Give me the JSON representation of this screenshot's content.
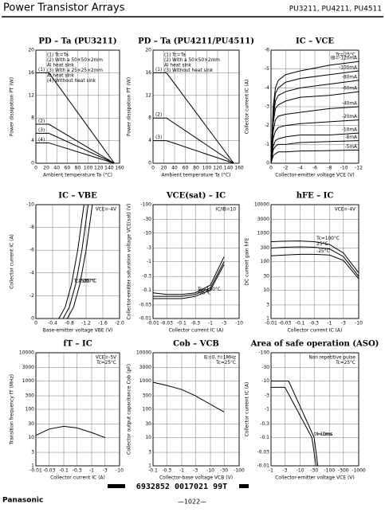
{
  "header": {
    "title": "Power Transistor Arrays",
    "models": "PU3211, PU4211, PU4511"
  },
  "chart_data": [
    {
      "type": "line",
      "title": "PD – Ta (PU3211)",
      "xlabel": "Ambient temperature Ta (°C)",
      "ylabel": "Power dissipation PT (W)",
      "xlim": [
        0,
        160
      ],
      "xticks": [
        0,
        20,
        40,
        60,
        80,
        100,
        120,
        140,
        160
      ],
      "ylim": [
        0,
        20
      ],
      "yticks": [
        0,
        4,
        8,
        12,
        16,
        20
      ],
      "grid": true,
      "legend": "upper left",
      "series_label": "start",
      "color": "#000",
      "annotations": [
        "(1) Tc=Ta",
        "(2) With a 50×50×2mm",
        "Al heat sink",
        "(3) With a 25×25×2mm",
        "Al heat sink",
        "(4) Without heat sink"
      ],
      "series": [
        {
          "name": "(1)",
          "x": [
            0,
            25,
            150
          ],
          "values": [
            16,
            16,
            0
          ]
        },
        {
          "name": "(2)",
          "x": [
            0,
            25,
            150
          ],
          "values": [
            6.9,
            6.9,
            0
          ]
        },
        {
          "name": "(3)",
          "x": [
            0,
            25,
            150
          ],
          "values": [
            5.3,
            5.3,
            0
          ]
        },
        {
          "name": "(4)",
          "x": [
            0,
            25,
            150
          ],
          "values": [
            3.6,
            3.6,
            0
          ]
        }
      ]
    },
    {
      "type": "line",
      "title": "PD – Ta (PU4211/PU4511)",
      "xlabel": "Ambient temperature Ta (°C)",
      "ylabel": "Power dissipation PT (W)",
      "xlim": [
        0,
        160
      ],
      "xticks": [
        0,
        20,
        40,
        60,
        80,
        100,
        120,
        140,
        160
      ],
      "ylim": [
        0,
        20
      ],
      "yticks": [
        0,
        4,
        8,
        12,
        16,
        20
      ],
      "grid": true,
      "legend": "upper left",
      "series_label": "start",
      "color": "#000",
      "annotations": [
        "(1) Tc=Ta",
        "(2) With a 50×50×2mm",
        "Al heat sink",
        "(3) Without heat sink"
      ],
      "series": [
        {
          "name": "(1)",
          "x": [
            0,
            25,
            150
          ],
          "values": [
            16,
            16,
            0
          ]
        },
        {
          "name": "(2)",
          "x": [
            0,
            25,
            150
          ],
          "values": [
            8,
            8,
            0
          ]
        },
        {
          "name": "(3)",
          "x": [
            0,
            25,
            150
          ],
          "values": [
            4,
            4,
            0
          ]
        }
      ]
    },
    {
      "type": "line",
      "title": "IC – VCE",
      "xlabel": "Collector-emitter voltage VCE (V)",
      "ylabel": "Collector current IC (A)",
      "xlim": [
        0,
        -12
      ],
      "xticks": [
        0,
        -2,
        -4,
        -6,
        -8,
        -10,
        -12
      ],
      "ylim": [
        0,
        -6
      ],
      "yticks": [
        0,
        -1,
        -2,
        -3,
        -4,
        -5,
        -6
      ],
      "grid": true,
      "legend": "upper right",
      "series_label": "end",
      "color": "#000",
      "annotations": [
        "Tc=25°C"
      ],
      "x": [
        0,
        -0.3,
        -0.6,
        -1,
        -2,
        -4,
        -8,
        -12
      ],
      "series": [
        {
          "name": "IB=-120mA",
          "values": [
            0,
            -3.0,
            -4.0,
            -4.4,
            -4.7,
            -4.9,
            -5.2,
            -5.4
          ]
        },
        {
          "name": "-100mA",
          "values": [
            0,
            -2.7,
            -3.7,
            -4.0,
            -4.3,
            -4.5,
            -4.7,
            -4.9
          ]
        },
        {
          "name": "-80mA",
          "values": [
            0,
            -2.4,
            -3.3,
            -3.6,
            -3.8,
            -4.0,
            -4.2,
            -4.4
          ]
        },
        {
          "name": "-60mA",
          "values": [
            0,
            -2.1,
            -2.9,
            -3.1,
            -3.3,
            -3.5,
            -3.6,
            -3.8
          ]
        },
        {
          "name": "-40mA",
          "values": [
            0,
            -1.7,
            -2.3,
            -2.5,
            -2.6,
            -2.7,
            -2.9,
            -3.0
          ]
        },
        {
          "name": "-20mA",
          "values": [
            0,
            -1.3,
            -1.7,
            -1.9,
            -2.0,
            -2.1,
            -2.2,
            -2.3
          ]
        },
        {
          "name": "-10mA",
          "values": [
            0,
            -0.9,
            -1.2,
            -1.3,
            -1.4,
            -1.5,
            -1.5,
            -1.6
          ]
        },
        {
          "name": "-8mA",
          "values": [
            0,
            -0.7,
            -0.9,
            -1.0,
            -1.0,
            -1.1,
            -1.15,
            -1.2
          ]
        },
        {
          "name": "-5mA",
          "values": [
            0,
            -0.4,
            -0.5,
            -0.6,
            -0.6,
            -0.65,
            -0.67,
            -0.7
          ]
        }
      ]
    },
    {
      "type": "line",
      "title": "IC – VBE",
      "xlabel": "Base-emitter voltage VBE (V)",
      "ylabel": "Collector current IC (A)",
      "xlim": [
        0,
        -2
      ],
      "xticks": [
        0,
        -0.4,
        -0.8,
        -1.2,
        -1.6,
        {
          "value": -2,
          "label": "-2.0"
        }
      ],
      "ylim": [
        0,
        -10
      ],
      "yticks": [
        0,
        -2,
        -4,
        -6,
        -8,
        -10
      ],
      "grid": true,
      "legend": "upper right",
      "series_label": "mid",
      "color": "#000",
      "annotations": [
        "VCE=-4V"
      ],
      "series": [
        {
          "name": "Tc=100°C",
          "x": [
            -0.55,
            -0.7,
            -0.85,
            -1.0,
            -1.15
          ],
          "values": [
            0,
            -1,
            -3,
            -6,
            -10
          ]
        },
        {
          "name": "25°C",
          "x": [
            -0.65,
            -0.8,
            -0.95,
            -1.1,
            -1.25
          ],
          "values": [
            0,
            -1,
            -3,
            -6,
            -10
          ]
        },
        {
          "name": "-25°C",
          "x": [
            -0.75,
            -0.9,
            -1.05,
            -1.2,
            -1.35
          ],
          "values": [
            0,
            -1,
            -3,
            -6,
            -10
          ]
        }
      ]
    },
    {
      "type": "line",
      "title": "VCE(sat) – IC",
      "xlabel": "Collector current IC (A)",
      "ylabel": "Collector-emitter saturation voltage VCE(sat) (V)",
      "xlog": true,
      "ylog": true,
      "xlim": [
        -0.01,
        -10
      ],
      "xticks": [
        -0.01,
        -0.03,
        -0.1,
        -0.3,
        -1,
        -3,
        -10
      ],
      "ylim": [
        -0.01,
        -100
      ],
      "yticks": [
        -0.01,
        -0.03,
        -0.1,
        -0.3,
        -1,
        -3,
        -10,
        -30,
        -100
      ],
      "grid": true,
      "legend": "upper right",
      "series_label": "mid",
      "color": "#000",
      "annotations": [
        "IC/IB=10"
      ],
      "series": [
        {
          "name": "Tc=100°C",
          "x": [
            -0.01,
            -0.03,
            -0.1,
            -0.3,
            -1,
            -3
          ],
          "values": [
            -0.08,
            -0.07,
            -0.07,
            -0.08,
            -0.15,
            -1.5
          ]
        },
        {
          "name": "25°C",
          "x": [
            -0.01,
            -0.03,
            -0.1,
            -0.3,
            -1,
            -3
          ],
          "values": [
            -0.06,
            -0.06,
            -0.06,
            -0.07,
            -0.12,
            -1.0
          ]
        },
        {
          "name": "-25°C",
          "x": [
            -0.01,
            -0.03,
            -0.1,
            -0.3,
            -1,
            -3
          ],
          "values": [
            -0.05,
            -0.05,
            -0.05,
            -0.06,
            -0.1,
            -0.8
          ]
        }
      ]
    },
    {
      "type": "line",
      "title": "hFE – IC",
      "xlabel": "Collector current IC (A)",
      "ylabel": "DC current gain hFE",
      "xlog": true,
      "ylog": true,
      "xlim": [
        -0.01,
        -10
      ],
      "xticks": [
        -0.01,
        -0.03,
        -0.1,
        -0.3,
        -1,
        -3,
        -10
      ],
      "ylim": [
        1,
        10000
      ],
      "yticks": [
        1,
        3,
        10,
        30,
        100,
        300,
        1000,
        3000,
        10000
      ],
      "grid": true,
      "legend": "upper right",
      "series_label": "mid",
      "color": "#000",
      "annotations": [
        "VCE=-4V"
      ],
      "series": [
        {
          "name": "Tc=100°C",
          "x": [
            -0.01,
            -0.03,
            -0.1,
            -0.3,
            -1,
            -3,
            -10
          ],
          "values": [
            500,
            520,
            530,
            500,
            400,
            200,
            40
          ]
        },
        {
          "name": "25°C",
          "x": [
            -0.01,
            -0.03,
            -0.1,
            -0.3,
            -1,
            -3,
            -10
          ],
          "values": [
            300,
            320,
            330,
            320,
            280,
            150,
            30
          ]
        },
        {
          "name": "-25°C",
          "x": [
            -0.01,
            -0.03,
            -0.1,
            -0.3,
            -1,
            -3,
            -10
          ],
          "values": [
            160,
            170,
            180,
            180,
            170,
            110,
            25
          ]
        }
      ]
    },
    {
      "type": "line",
      "title": "fT – IC",
      "xlabel": "Collector current IC (A)",
      "ylabel": "Transition frequency fT (MHz)",
      "xlog": true,
      "ylog": true,
      "xlim": [
        -0.01,
        -10
      ],
      "xticks": [
        -0.01,
        -0.03,
        -0.1,
        -0.3,
        -1,
        -3,
        -10
      ],
      "ylim": [
        1,
        10000
      ],
      "yticks": [
        1,
        3,
        10,
        30,
        100,
        300,
        1000,
        3000,
        10000
      ],
      "grid": true,
      "legend": "upper right",
      "series_label": "end",
      "color": "#000",
      "annotations": [
        "VCE=-5V",
        "Tc=25°C"
      ],
      "series": [
        {
          "x": [
            -0.01,
            -0.03,
            -0.1,
            -0.3,
            -1,
            -3
          ],
          "values": [
            12,
            20,
            25,
            22,
            15,
            10
          ]
        }
      ]
    },
    {
      "type": "line",
      "title": "Cob – VCB",
      "xlabel": "Collector-base voltage VCB (V)",
      "ylabel": "Collector output capacitance Cob (pF)",
      "xlog": true,
      "ylog": true,
      "xlim": [
        -0.1,
        -100
      ],
      "xticks": [
        -0.1,
        -0.3,
        -1,
        -3,
        -10,
        -30,
        -100
      ],
      "ylim": [
        1,
        10000
      ],
      "yticks": [
        1,
        3,
        10,
        30,
        100,
        300,
        1000,
        3000,
        10000
      ],
      "grid": true,
      "legend": "upper right",
      "series_label": "end",
      "color": "#000",
      "annotations": [
        "IE=0, f=1MHz",
        "Tc=25°C"
      ],
      "series": [
        {
          "x": [
            -0.1,
            -0.3,
            -1,
            -3,
            -10,
            -30
          ],
          "values": [
            900,
            700,
            500,
            300,
            150,
            80
          ]
        }
      ]
    },
    {
      "type": "line",
      "title": "Area of safe operation (ASO)",
      "xlabel": "Collector-emitter voltage VCE (V)",
      "ylabel": "Collector current IC (A)",
      "xlog": true,
      "ylog": true,
      "xlim": [
        -1,
        -1000
      ],
      "xticks": [
        -1,
        -3,
        -10,
        -30,
        -100,
        -300,
        -1000
      ],
      "ylim": [
        -0.01,
        -100
      ],
      "yticks": [
        -0.01,
        -0.03,
        -0.1,
        -0.3,
        -1,
        -3,
        -10,
        -30,
        -100
      ],
      "grid": true,
      "legend": "upper right",
      "series_label": "mid",
      "color": "#000",
      "annotations": [
        "Non repetitive pulse",
        "Tc=25°C"
      ],
      "series": [
        {
          "name": "t=1ms",
          "x": [
            -1,
            -4,
            -30,
            -40
          ],
          "values": [
            -10,
            -10,
            -0.1,
            -0.01
          ]
        },
        {
          "name": "t=10ms",
          "x": [
            -1,
            -3,
            -25,
            -35
          ],
          "values": [
            -6,
            -6,
            -0.1,
            -0.01
          ]
        }
      ]
    }
  ],
  "footer": {
    "code": "6932852 0017021 99T",
    "brand": "Panasonic",
    "page": "—1022—"
  }
}
